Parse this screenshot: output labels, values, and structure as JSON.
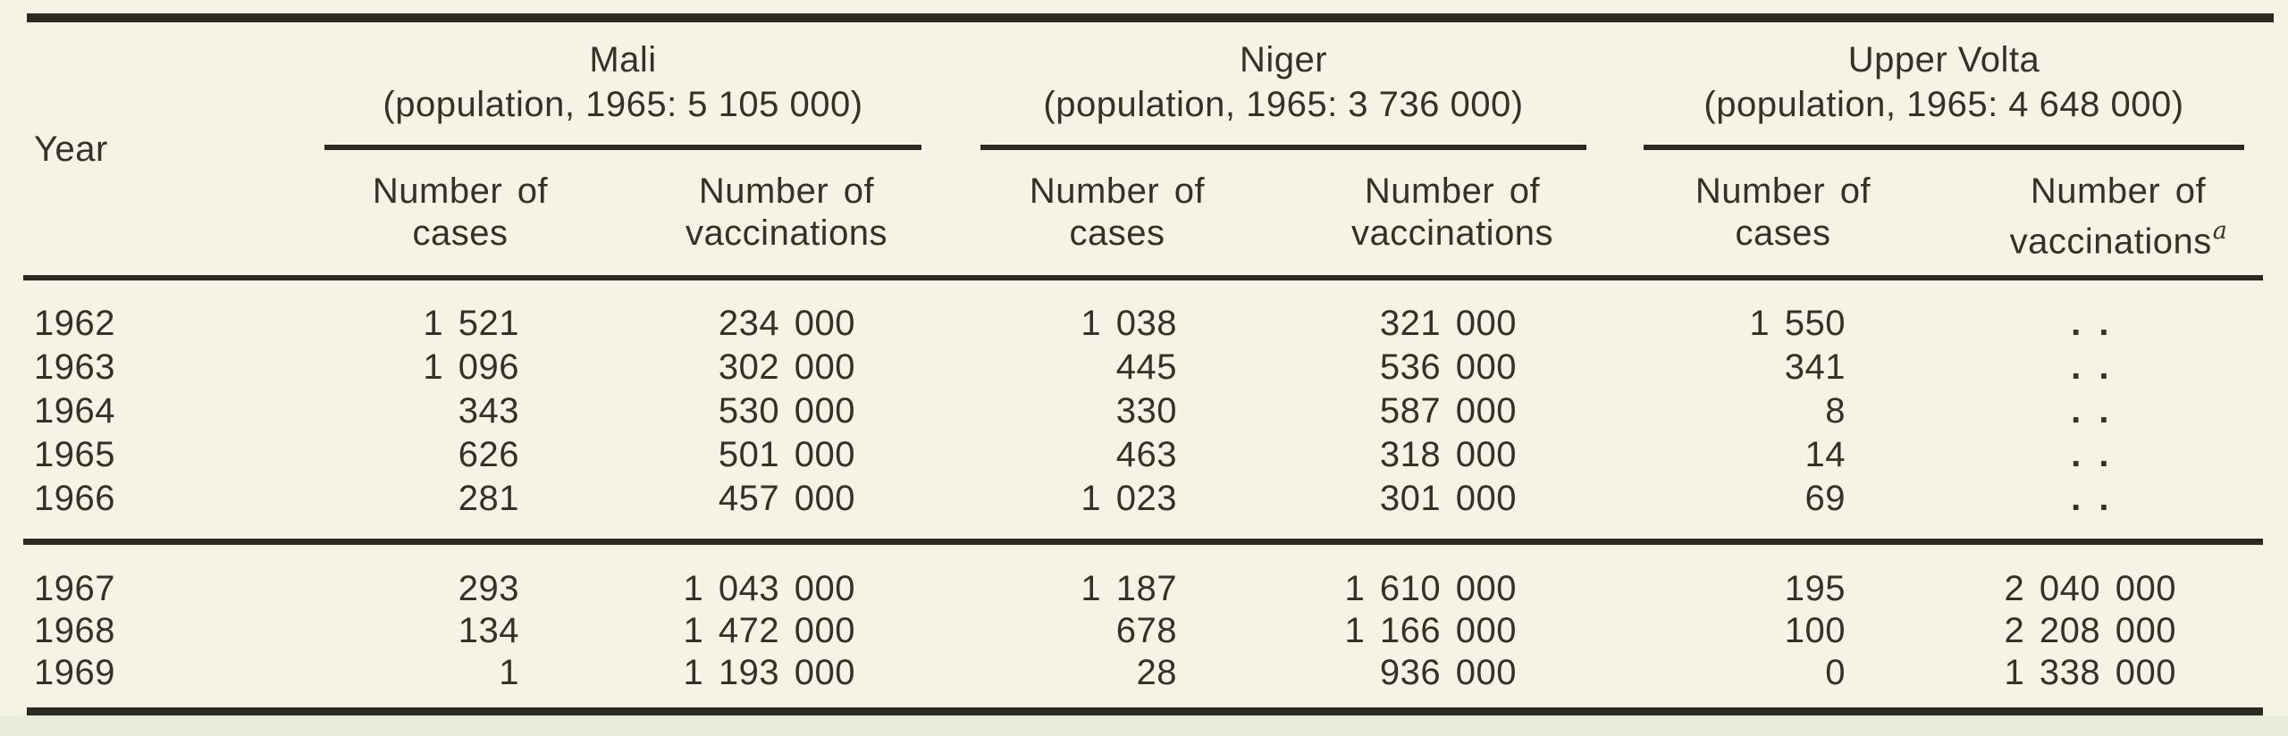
{
  "table": {
    "year_label": "Year",
    "groups": [
      {
        "name": "Mali",
        "population_note": "(population, 1965: 5 105 000)"
      },
      {
        "name": "Niger",
        "population_note": "(population, 1965: 3 736 000)"
      },
      {
        "name": "Upper Volta",
        "population_note": "(population, 1965: 4 648 000)"
      }
    ],
    "subheaders": {
      "cases_line1": "Number of",
      "cases_line2": "cases",
      "vacc_line1": "Number of",
      "vacc_line2": "vaccinations",
      "footnote_marker": "a"
    },
    "missing_value": ". .",
    "sections": [
      {
        "rows": [
          [
            "1962",
            "1 521",
            "234 000",
            "1 038",
            "321 000",
            "1 550",
            ". ."
          ],
          [
            "1963",
            "1 096",
            "302 000",
            "445",
            "536 000",
            "341",
            ". ."
          ],
          [
            "1964",
            "343",
            "530 000",
            "330",
            "587 000",
            "8",
            ". ."
          ],
          [
            "1965",
            "626",
            "501 000",
            "463",
            "318 000",
            "14",
            ". ."
          ],
          [
            "1966",
            "281",
            "457 000",
            "1 023",
            "301 000",
            "69",
            ". ."
          ]
        ]
      },
      {
        "rows": [
          [
            "1967",
            "293",
            "1 043 000",
            "1 187",
            "1 610 000",
            "195",
            "2 040 000"
          ],
          [
            "1968",
            "134",
            "1 472 000",
            "678",
            "1 166 000",
            "100",
            "2 208 000"
          ],
          [
            "1969",
            "1",
            "1 193 000",
            "28",
            "936 000",
            "0",
            "1 338 000"
          ]
        ]
      }
    ]
  },
  "colors": {
    "paper": "#f6f3e6",
    "bottom_band": "#eaecdb",
    "ink": "#343129",
    "rule": "#2b2922"
  }
}
